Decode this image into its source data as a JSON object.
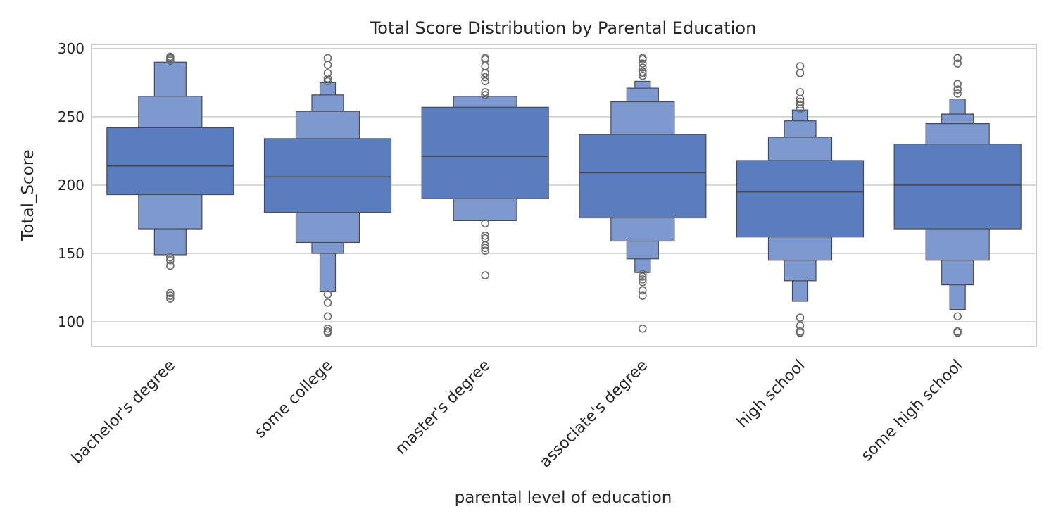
{
  "chart_data": {
    "type": "boxen",
    "title": "Total Score Distribution by Parental Education",
    "xlabel": "parental level of education",
    "ylabel": "Total_Score",
    "ylim": [
      82,
      303
    ],
    "yticks": [
      100,
      150,
      200,
      250,
      300
    ],
    "grid": true,
    "colors": {
      "inner": "#5A7DC0",
      "outer": "#7E99D0",
      "edge": "#4a4a4a",
      "flier": "#6b6b6b"
    },
    "categories": [
      {
        "name": "bachelor's degree",
        "median": 214,
        "levels": [
          [
            193,
            242
          ],
          [
            168,
            265
          ],
          [
            149,
            290
          ]
        ],
        "outliers": [
          147,
          145,
          141,
          121,
          119,
          117,
          291,
          292,
          293,
          294
        ]
      },
      {
        "name": "some college",
        "median": 206,
        "levels": [
          [
            180,
            234
          ],
          [
            158,
            254
          ],
          [
            150,
            266
          ],
          [
            122,
            275
          ]
        ],
        "outliers": [
          120,
          114,
          104,
          95,
          93,
          92,
          276,
          278,
          282,
          288,
          293
        ]
      },
      {
        "name": "master's degree",
        "median": 221,
        "levels": [
          [
            190,
            257
          ],
          [
            174,
            265
          ]
        ],
        "outliers": [
          172,
          163,
          161,
          156,
          154,
          152,
          134,
          266,
          268,
          276,
          279,
          282,
          287,
          292,
          293
        ]
      },
      {
        "name": "associate's degree",
        "median": 209,
        "levels": [
          [
            176,
            237
          ],
          [
            159,
            261
          ],
          [
            146,
            271
          ],
          [
            136,
            276
          ]
        ],
        "outliers": [
          135,
          133,
          131,
          129,
          123,
          119,
          95,
          280,
          282,
          283,
          286,
          289,
          292,
          293
        ]
      },
      {
        "name": "high school",
        "median": 195,
        "levels": [
          [
            162,
            218
          ],
          [
            145,
            235
          ],
          [
            130,
            247
          ],
          [
            115,
            255
          ]
        ],
        "outliers": [
          103,
          97,
          93,
          92,
          256,
          259,
          261,
          263,
          268,
          282,
          287
        ]
      },
      {
        "name": "some high school",
        "median": 200,
        "levels": [
          [
            168,
            230
          ],
          [
            145,
            245
          ],
          [
            127,
            252
          ],
          [
            109,
            263
          ]
        ],
        "outliers": [
          104,
          93,
          92,
          267,
          270,
          274,
          289,
          293
        ]
      }
    ]
  }
}
